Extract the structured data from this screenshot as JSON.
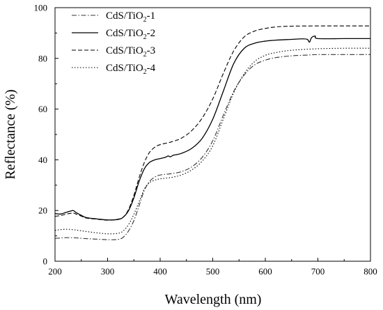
{
  "chart_data": {
    "type": "line",
    "title": "",
    "xlabel": "Wavelength (nm)",
    "ylabel": "Reflectance (%)",
    "xlim": [
      200,
      800
    ],
    "ylim": [
      0,
      100
    ],
    "xticks": [
      200,
      300,
      400,
      500,
      600,
      700,
      800
    ],
    "yticks": [
      0,
      20,
      40,
      60,
      80,
      100
    ],
    "grid": false,
    "legend_position": "top-left",
    "series": [
      {
        "name": "CdS/TiO2-1",
        "legend_parts": [
          "CdS/TiO",
          "2",
          "-1"
        ],
        "style": "dashdot",
        "color": "#333333",
        "x": [
          200,
          220,
          240,
          260,
          280,
          300,
          320,
          330,
          340,
          350,
          360,
          370,
          380,
          390,
          400,
          420,
          440,
          460,
          480,
          500,
          520,
          540,
          560,
          580,
          600,
          620,
          650,
          680,
          700,
          750,
          800
        ],
        "y": [
          9,
          9.3,
          9.2,
          8.9,
          8.7,
          8.5,
          8.6,
          9.5,
          12,
          16,
          22,
          28,
          31.5,
          33.2,
          34,
          34.5,
          35.3,
          37.2,
          41,
          47.5,
          57.5,
          67,
          73.5,
          77.5,
          79.3,
          80.3,
          81,
          81.3,
          81.5,
          81.5,
          81.5
        ]
      },
      {
        "name": "CdS/TiO2-2",
        "legend_parts": [
          "CdS/TiO",
          "2",
          "-2"
        ],
        "style": "solid",
        "color": "#000000",
        "x": [
          200,
          210,
          220,
          230,
          235,
          240,
          250,
          260,
          280,
          300,
          320,
          330,
          340,
          350,
          360,
          370,
          380,
          390,
          400,
          410,
          415,
          420,
          425,
          440,
          460,
          480,
          500,
          520,
          540,
          560,
          580,
          600,
          620,
          650,
          670,
          680,
          684,
          688,
          695,
          700,
          750,
          800
        ],
        "y": [
          18.8,
          18.6,
          19.2,
          19.8,
          20,
          19.2,
          18.1,
          17.2,
          16.7,
          16.3,
          16.5,
          17.4,
          20,
          25,
          31.5,
          36.5,
          39,
          40,
          40.5,
          41,
          41.5,
          41.2,
          41.8,
          42.5,
          44.5,
          48.5,
          56,
          67,
          78,
          84,
          86,
          86.8,
          87.2,
          87.5,
          87.7,
          87.5,
          86.4,
          88.2,
          88.8,
          87.8,
          87.8,
          87.8
        ]
      },
      {
        "name": "CdS/TiO2-3",
        "legend_parts": [
          "CdS/TiO",
          "2",
          "-3"
        ],
        "style": "dashed",
        "color": "#000000",
        "x": [
          200,
          210,
          220,
          230,
          235,
          240,
          250,
          260,
          280,
          300,
          320,
          330,
          340,
          350,
          360,
          370,
          380,
          390,
          400,
          420,
          440,
          460,
          480,
          500,
          520,
          540,
          560,
          580,
          600,
          620,
          650,
          700,
          750,
          800
        ],
        "y": [
          17.7,
          18,
          18.5,
          18.9,
          19,
          18.6,
          17.8,
          17,
          16.6,
          16.2,
          16.6,
          17.4,
          20.5,
          26,
          33,
          39,
          43,
          45,
          46,
          47,
          48.5,
          51.5,
          56.5,
          64,
          74,
          83,
          88.5,
          90.8,
          91.8,
          92.4,
          92.7,
          92.8,
          92.8,
          92.8
        ]
      },
      {
        "name": "CdS/TiO2-4",
        "legend_parts": [
          "CdS/TiO",
          "2",
          "-4"
        ],
        "style": "dotted",
        "color": "#000000",
        "x": [
          200,
          220,
          240,
          260,
          280,
          300,
          320,
          330,
          340,
          350,
          360,
          370,
          380,
          390,
          400,
          420,
          440,
          460,
          480,
          500,
          520,
          540,
          560,
          580,
          600,
          620,
          650,
          700,
          750,
          800
        ],
        "y": [
          12.2,
          12.6,
          12.3,
          11.7,
          11.2,
          10.8,
          11,
          12,
          14.5,
          18.5,
          23.5,
          28.5,
          31,
          32,
          32.5,
          33,
          34,
          36,
          39.5,
          45.5,
          56,
          66.5,
          74,
          78.8,
          81.2,
          82.3,
          83.2,
          83.8,
          84,
          84
        ]
      }
    ]
  }
}
